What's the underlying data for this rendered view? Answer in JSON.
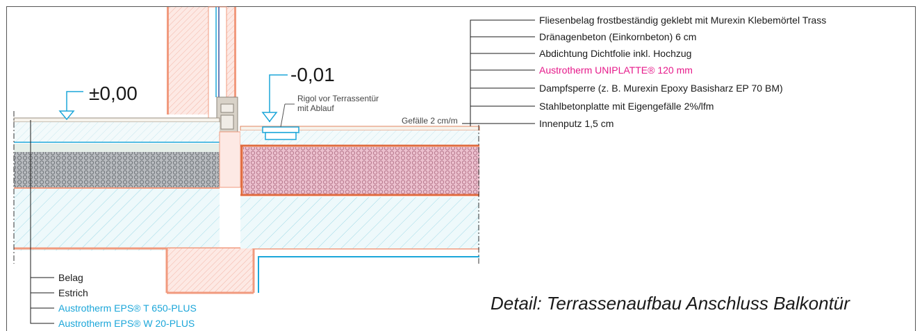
{
  "levels": {
    "inside": "±0,00",
    "outside": "-0,01"
  },
  "notes": {
    "rigol": [
      "Rigol vor Terrassentür",
      "mit Ablauf"
    ],
    "slope": "Gefälle 2 cm/m"
  },
  "labels_right": [
    {
      "text": "Fliesenbelag frostbeständig geklebt mit Murexin Klebemörtel Trass",
      "color": "#1a1a1a"
    },
    {
      "text": "Dränagenbeton (Einkornbeton) 6 cm",
      "color": "#1a1a1a"
    },
    {
      "text": "Abdichtung Dichtfolie inkl. Hochzug",
      "color": "#1a1a1a"
    },
    {
      "text": "Austrotherm UNIPLATTE® 120 mm",
      "color": "#e6198a"
    },
    {
      "text": "Dampfsperre (z. B. Murexin Epoxy Basisharz EP 70 BM)",
      "color": "#1a1a1a"
    },
    {
      "text": "Stahlbetonplatte mit Eigengefälle 2%/lfm",
      "color": "#1a1a1a"
    },
    {
      "text": "Innenputz 1,5 cm",
      "color": "#1a1a1a"
    }
  ],
  "labels_left": [
    {
      "text": "Belag",
      "color": "#1a1a1a"
    },
    {
      "text": "Estrich",
      "color": "#1a1a1a"
    },
    {
      "text": "Austrotherm EPS® T 650-PLUS",
      "color": "#1ba6d9"
    },
    {
      "text": "Austrotherm EPS® W 20-PLUS",
      "color": "#1ba6d9"
    }
  ],
  "caption": "Detail: Terrassenaufbau Anschluss Balkontür"
}
